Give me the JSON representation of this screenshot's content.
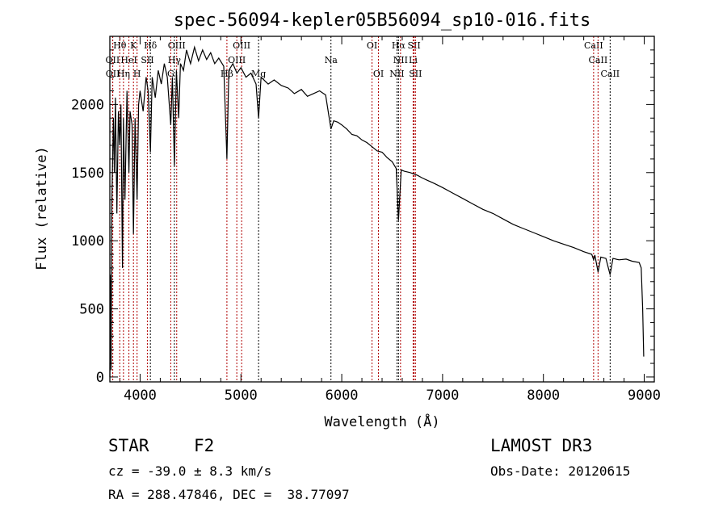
{
  "chart_data": {
    "type": "line",
    "title": "spec-56094-kepler05B56094_sp10-016.fits",
    "xlabel": "Wavelength (Å)",
    "ylabel": "Flux (relative)",
    "xlim": [
      3700,
      9100
    ],
    "ylim": [
      -36,
      2500
    ],
    "xticks": [
      4000,
      5000,
      6000,
      7000,
      8000,
      9000
    ],
    "yticks": [
      0,
      500,
      1000,
      1500,
      2000
    ],
    "series": [
      {
        "name": "spectrum",
        "color": "#000000",
        "points": [
          [
            3700,
            0
          ],
          [
            3705,
            750
          ],
          [
            3712,
            50
          ],
          [
            3720,
            1300
          ],
          [
            3735,
            1900
          ],
          [
            3745,
            1500
          ],
          [
            3755,
            2050
          ],
          [
            3770,
            1200
          ],
          [
            3785,
            1950
          ],
          [
            3798,
            1700
          ],
          [
            3810,
            2000
          ],
          [
            3825,
            800
          ],
          [
            3835,
            1900
          ],
          [
            3850,
            1300
          ],
          [
            3870,
            2100
          ],
          [
            3889,
            1500
          ],
          [
            3900,
            1950
          ],
          [
            3920,
            1850
          ],
          [
            3934,
            1050
          ],
          [
            3950,
            1900
          ],
          [
            3970,
            1300
          ],
          [
            3985,
            2000
          ],
          [
            4000,
            2100
          ],
          [
            4030,
            1950
          ],
          [
            4060,
            2200
          ],
          [
            4080,
            2100
          ],
          [
            4102,
            1650
          ],
          [
            4120,
            2200
          ],
          [
            4150,
            2050
          ],
          [
            4180,
            2250
          ],
          [
            4210,
            2150
          ],
          [
            4240,
            2300
          ],
          [
            4270,
            2200
          ],
          [
            4304,
            1850
          ],
          [
            4320,
            2200
          ],
          [
            4340,
            1550
          ],
          [
            4360,
            2250
          ],
          [
            4383,
            1900
          ],
          [
            4400,
            2300
          ],
          [
            4430,
            2250
          ],
          [
            4460,
            2400
          ],
          [
            4500,
            2300
          ],
          [
            4540,
            2420
          ],
          [
            4580,
            2320
          ],
          [
            4620,
            2400
          ],
          [
            4660,
            2330
          ],
          [
            4700,
            2380
          ],
          [
            4740,
            2300
          ],
          [
            4780,
            2340
          ],
          [
            4830,
            2280
          ],
          [
            4861,
            1600
          ],
          [
            4880,
            2250
          ],
          [
            4920,
            2300
          ],
          [
            4960,
            2230
          ],
          [
            5000,
            2270
          ],
          [
            5050,
            2200
          ],
          [
            5100,
            2230
          ],
          [
            5150,
            2150
          ],
          [
            5175,
            1900
          ],
          [
            5200,
            2200
          ],
          [
            5270,
            2150
          ],
          [
            5330,
            2180
          ],
          [
            5400,
            2140
          ],
          [
            5470,
            2120
          ],
          [
            5530,
            2080
          ],
          [
            5600,
            2110
          ],
          [
            5660,
            2060
          ],
          [
            5720,
            2080
          ],
          [
            5780,
            2100
          ],
          [
            5840,
            2070
          ],
          [
            5893,
            1820
          ],
          [
            5920,
            1880
          ],
          [
            5960,
            1870
          ],
          [
            6000,
            1850
          ],
          [
            6050,
            1820
          ],
          [
            6100,
            1780
          ],
          [
            6150,
            1770
          ],
          [
            6200,
            1740
          ],
          [
            6250,
            1720
          ],
          [
            6300,
            1690
          ],
          [
            6350,
            1660
          ],
          [
            6400,
            1650
          ],
          [
            6450,
            1610
          ],
          [
            6500,
            1580
          ],
          [
            6540,
            1530
          ],
          [
            6563,
            1150
          ],
          [
            6590,
            1520
          ],
          [
            6620,
            1510
          ],
          [
            6680,
            1500
          ],
          [
            6750,
            1480
          ],
          [
            6800,
            1460
          ],
          [
            6860,
            1440
          ],
          [
            6920,
            1420
          ],
          [
            7000,
            1390
          ],
          [
            7100,
            1350
          ],
          [
            7200,
            1310
          ],
          [
            7300,
            1270
          ],
          [
            7400,
            1230
          ],
          [
            7500,
            1200
          ],
          [
            7600,
            1160
          ],
          [
            7700,
            1120
          ],
          [
            7800,
            1090
          ],
          [
            7900,
            1060
          ],
          [
            8000,
            1030
          ],
          [
            8100,
            1000
          ],
          [
            8200,
            975
          ],
          [
            8300,
            950
          ],
          [
            8400,
            920
          ],
          [
            8480,
            900
          ],
          [
            8498,
            860
          ],
          [
            8510,
            895
          ],
          [
            8542,
            770
          ],
          [
            8570,
            880
          ],
          [
            8620,
            870
          ],
          [
            8662,
            750
          ],
          [
            8690,
            870
          ],
          [
            8750,
            860
          ],
          [
            8820,
            865
          ],
          [
            8880,
            850
          ],
          [
            8950,
            840
          ],
          [
            8970,
            800
          ],
          [
            8985,
            500
          ],
          [
            8995,
            150
          ]
        ]
      }
    ],
    "lines": [
      {
        "w": 3798,
        "label": "Hθ",
        "row": 0,
        "color": "#b00000"
      },
      {
        "w": 3934,
        "label": "K",
        "row": 0,
        "color": "#b00000"
      },
      {
        "w": 4102,
        "label": "Hδ",
        "row": 0,
        "color": "#000000"
      },
      {
        "w": 4363,
        "label": "OIII",
        "row": 0,
        "color": "#b00000"
      },
      {
        "w": 5007,
        "label": "OIII",
        "row": 0,
        "color": "#b00000"
      },
      {
        "w": 6300,
        "label": "OI",
        "row": 0,
        "color": "#b00000"
      },
      {
        "w": 6563,
        "label": "Hα",
        "row": 0,
        "color": "#000000"
      },
      {
        "w": 6717,
        "label": "SII",
        "row": 0,
        "color": "#b00000"
      },
      {
        "w": 8498,
        "label": "CaII",
        "row": 0,
        "color": "#b00000"
      },
      {
        "w": 3727,
        "label": "OII",
        "row": 1,
        "color": "#b00000"
      },
      {
        "w": 3889,
        "label": "HeI",
        "row": 1,
        "color": "#b00000"
      },
      {
        "w": 4072,
        "label": "SII",
        "row": 1,
        "color": "#b00000"
      },
      {
        "w": 4340,
        "label": "Hγ",
        "row": 1,
        "color": "#000000"
      },
      {
        "w": 4959,
        "label": "OIII",
        "row": 1,
        "color": "#b00000"
      },
      {
        "w": 5893,
        "label": "Na",
        "row": 1,
        "color": "#000000"
      },
      {
        "w": 6583,
        "label": "NII",
        "row": 1,
        "color": "#b00000"
      },
      {
        "w": 6708,
        "label": "Li",
        "row": 1,
        "color": "#b00000"
      },
      {
        "w": 8542,
        "label": "CaII",
        "row": 1,
        "color": "#b00000"
      },
      {
        "w": 3729,
        "label": "OII",
        "row": 2,
        "color": "#b00000"
      },
      {
        "w": 3835,
        "label": "Hη",
        "row": 2,
        "color": "#b00000"
      },
      {
        "w": 3970,
        "label": "H",
        "row": 2,
        "color": "#b00000"
      },
      {
        "w": 4304,
        "label": "G",
        "row": 2,
        "color": "#b00000"
      },
      {
        "w": 4861,
        "label": "Hβ",
        "row": 2,
        "color": "#b00000"
      },
      {
        "w": 5175,
        "label": "Mg",
        "row": 2,
        "color": "#000000"
      },
      {
        "w": 6364,
        "label": "OI",
        "row": 2,
        "color": "#b00000"
      },
      {
        "w": 6548,
        "label": "NII",
        "row": 2,
        "color": "#000000"
      },
      {
        "w": 6731,
        "label": "SII",
        "row": 2,
        "color": "#b00000"
      },
      {
        "w": 8662,
        "label": "CaII",
        "row": 2,
        "color": "#000000"
      }
    ]
  },
  "info": {
    "object_class": "STAR",
    "subclass": "F2",
    "cz": "cz = -39.0 ± 8.3 km/s",
    "coords": "RA = 288.47846, DEC =  38.77097",
    "survey": "LAMOST DR3",
    "obs_date": "Obs-Date: 20120615"
  }
}
